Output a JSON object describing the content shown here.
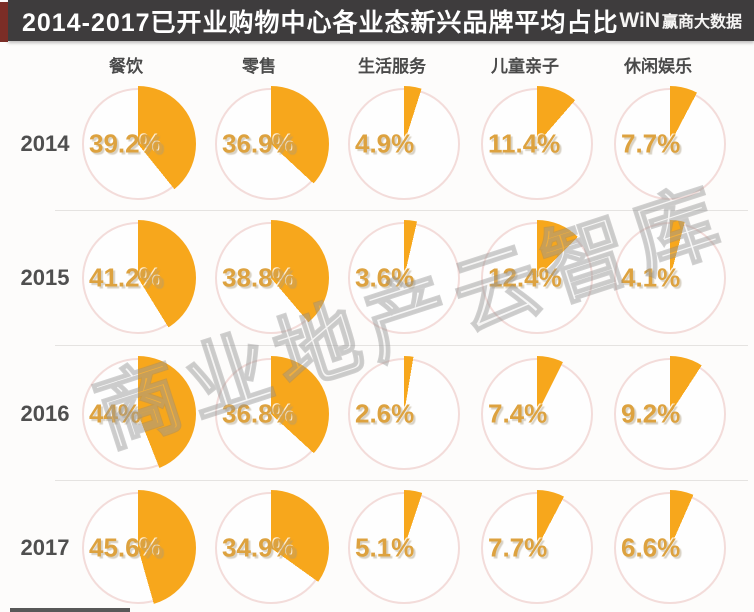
{
  "header": {
    "title": "2014-2017已开业购物中心各业态新兴品牌平均占比",
    "logo_win": "WiN",
    "logo_text": "赢商大数据"
  },
  "watermark": "商业地产云智库",
  "chart_data": {
    "type": "pie",
    "title": "2014-2017已开业购物中心各业态新兴品牌平均占比",
    "unit": "%",
    "categories": [
      "餐饮",
      "零售",
      "生活服务",
      "儿童亲子",
      "休闲娱乐"
    ],
    "rows": [
      {
        "year": "2014",
        "values": [
          39.2,
          36.9,
          4.9,
          11.4,
          7.7
        ],
        "labels": [
          "39.2%",
          "36.9%",
          "4.9%",
          "11.4%",
          "7.7%"
        ]
      },
      {
        "year": "2015",
        "values": [
          41.2,
          38.8,
          3.6,
          12.4,
          4.1
        ],
        "labels": [
          "41.2%",
          "38.8%",
          "3.6%",
          "12.4%",
          "4.1%"
        ]
      },
      {
        "year": "2016",
        "values": [
          44,
          36.8,
          2.6,
          7.4,
          9.2
        ],
        "labels": [
          "44%",
          "36.8%",
          "2.6%",
          "7.4%",
          "9.2%"
        ]
      },
      {
        "year": "2017",
        "values": [
          45.6,
          34.9,
          5.1,
          7.7,
          6.6
        ],
        "labels": [
          "45.6%",
          "34.9%",
          "5.1%",
          "7.7%",
          "6.6%"
        ]
      }
    ],
    "colors": {
      "wedge": "#f7a71c",
      "label": "#dda23f",
      "circle_border": "#f3dcda"
    },
    "legend_position": "none",
    "grid": false,
    "layout_hint": "small-multiples grid: 4 year rows x 5 category columns, wedge starts at 12 o'clock clockwise"
  }
}
